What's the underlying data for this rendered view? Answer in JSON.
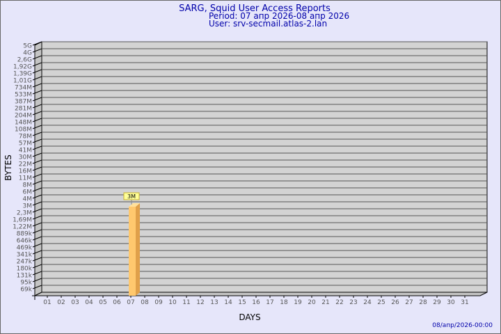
{
  "chart_data": {
    "type": "bar",
    "title": "SARG, Squid User Access Reports",
    "subtitle_lines": [
      "Period: 07 апр 2026-08 апр 2026",
      "User: srv-secmail.atlas-2.lan"
    ],
    "xlabel": "DAYS",
    "ylabel": "BYTES",
    "y_scale": "log",
    "y_tick_labels": [
      "5G",
      "4G",
      "2,6G",
      "1,92G",
      "1,39G",
      "1,01G",
      "734M",
      "533M",
      "387M",
      "281M",
      "204M",
      "148M",
      "108M",
      "78M",
      "57M",
      "41M",
      "30M",
      "22M",
      "16M",
      "11M",
      "8M",
      "6M",
      "4M",
      "3M",
      "2,3M",
      "1,69M",
      "1,22M",
      "889k",
      "646k",
      "469k",
      "341k",
      "247k",
      "180k",
      "131k",
      "95k",
      "69k"
    ],
    "categories": [
      "01",
      "02",
      "03",
      "04",
      "05",
      "06",
      "07",
      "08",
      "09",
      "10",
      "11",
      "12",
      "13",
      "14",
      "15",
      "16",
      "17",
      "18",
      "19",
      "20",
      "21",
      "22",
      "23",
      "24",
      "25",
      "26",
      "27",
      "28",
      "29",
      "30",
      "31"
    ],
    "values": [
      null,
      null,
      null,
      null,
      null,
      null,
      3000000,
      null,
      null,
      null,
      null,
      null,
      null,
      null,
      null,
      null,
      null,
      null,
      null,
      null,
      null,
      null,
      null,
      null,
      null,
      null,
      null,
      null,
      null,
      null,
      null
    ],
    "data_labels": {
      "07": "3M"
    },
    "grid": true,
    "footer": "08/апр/2026-00:00",
    "colors": {
      "title": "#0000aa",
      "bar": "#ffc86e",
      "bar_side": "#e0a04a",
      "plot_bg": "#d3d3d3",
      "label_bg": "#ffff99"
    }
  }
}
